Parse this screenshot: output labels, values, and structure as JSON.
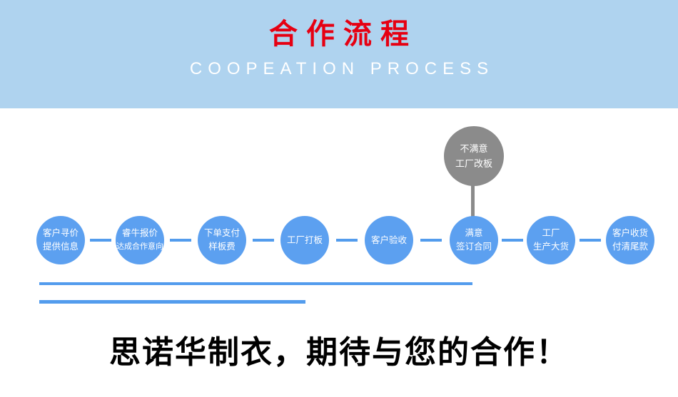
{
  "header": {
    "title": "合作流程",
    "subtitle": "COOPEATION PROCESS",
    "bg_color": "#afd3ef",
    "title_color": "#e60012",
    "subtitle_color": "#ffffff"
  },
  "flow": {
    "node_color": "#5ca0f0",
    "connector_color": "#539ced",
    "reject_color": "#8b8b8b",
    "reject_node": {
      "line1": "不满意",
      "line2": "工厂改板"
    },
    "steps": [
      {
        "line1": "客户寻价",
        "line2": "提供信息"
      },
      {
        "line1": "睿牛报价",
        "line2": "达成合作意向"
      },
      {
        "line1": "下单支付",
        "line2": "样板费"
      },
      {
        "line1": "工厂打板"
      },
      {
        "line1": "客户验收"
      },
      {
        "line1": "满意",
        "line2": "签订合同"
      },
      {
        "line1": "工厂",
        "line2": "生产大货"
      },
      {
        "line1": "客户收货",
        "line2": "付清尾款"
      }
    ]
  },
  "footer": {
    "slogan": "思诺华制衣，期待与您的合作！"
  }
}
